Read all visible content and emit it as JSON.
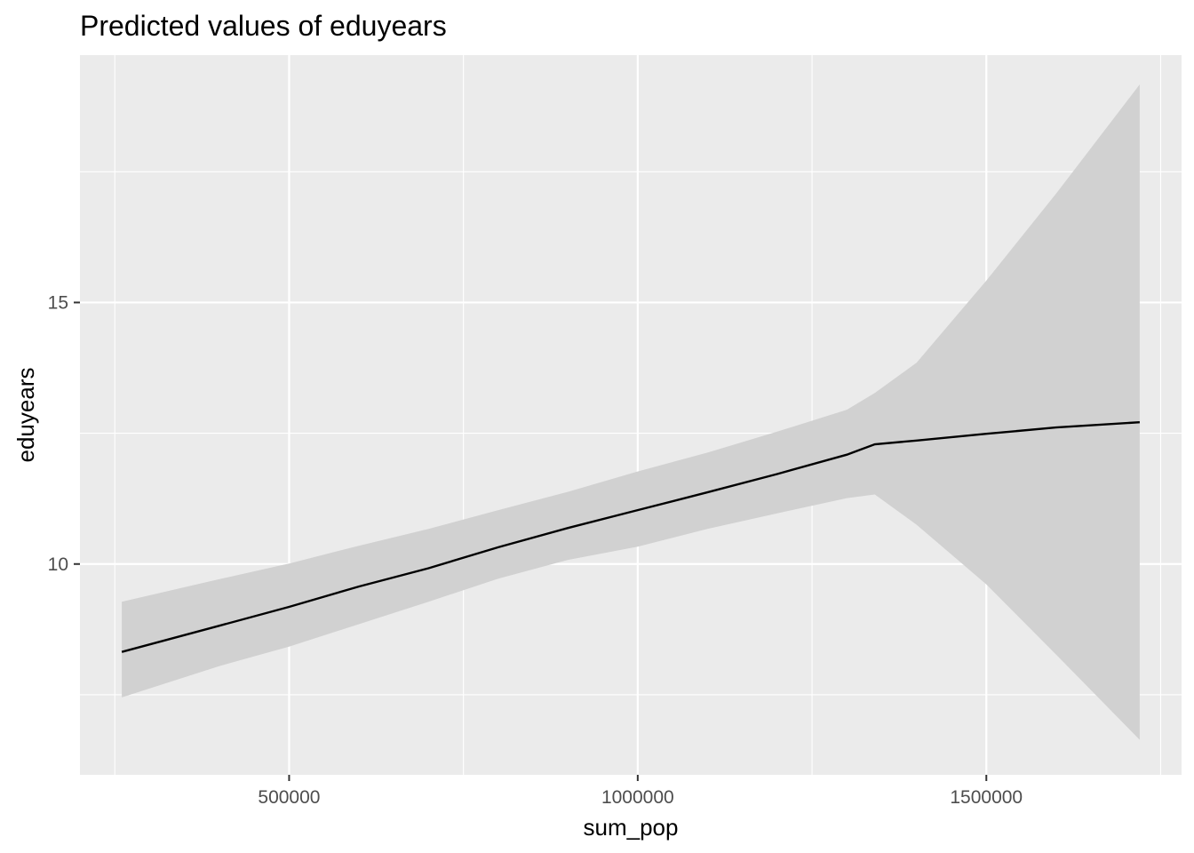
{
  "chart_data": {
    "type": "line",
    "title": "Predicted values of eduyears",
    "xlabel": "sum_pop",
    "ylabel": "eduyears",
    "xlim": [
      200000,
      1780000
    ],
    "ylim": [
      5.97,
      19.73
    ],
    "x_ticks": [
      500000,
      1000000,
      1500000
    ],
    "x_tick_labels": [
      "500000",
      "1000000",
      "1500000"
    ],
    "x_minor_ticks": [
      250000,
      750000,
      1250000,
      1750000
    ],
    "y_ticks": [
      10,
      15
    ],
    "y_tick_labels": [
      "10",
      "15"
    ],
    "y_minor_ticks": [
      7.5,
      12.5,
      17.5
    ],
    "grid": true,
    "legend": "none",
    "series": [
      {
        "x": [
          260000,
          400000,
          500000,
          600000,
          700000,
          800000,
          900000,
          1000000,
          1100000,
          1200000,
          1300000,
          1340000,
          1400000,
          1500000,
          1600000,
          1720000
        ],
        "y": [
          8.32,
          8.82,
          9.18,
          9.57,
          9.92,
          10.32,
          10.69,
          11.03,
          11.37,
          11.72,
          12.09,
          12.29,
          12.36,
          12.49,
          12.61,
          12.71
        ],
        "ci_lower": [
          7.45,
          8.05,
          8.42,
          8.85,
          9.28,
          9.72,
          10.08,
          10.33,
          10.67,
          10.97,
          11.26,
          11.33,
          10.75,
          9.61,
          8.27,
          6.64
        ],
        "ci_upper": [
          9.28,
          9.71,
          10.01,
          10.35,
          10.67,
          11.03,
          11.38,
          11.77,
          12.13,
          12.53,
          12.95,
          13.27,
          13.85,
          15.42,
          17.08,
          19.17
        ]
      }
    ],
    "colors": {
      "panel_background": "#EBEBEB",
      "grid_major": "#FFFFFF",
      "ribbon": "#D1D1D1",
      "line": "#000000",
      "tick_text": "#4D4D4D",
      "tick_mark": "#333333"
    }
  }
}
